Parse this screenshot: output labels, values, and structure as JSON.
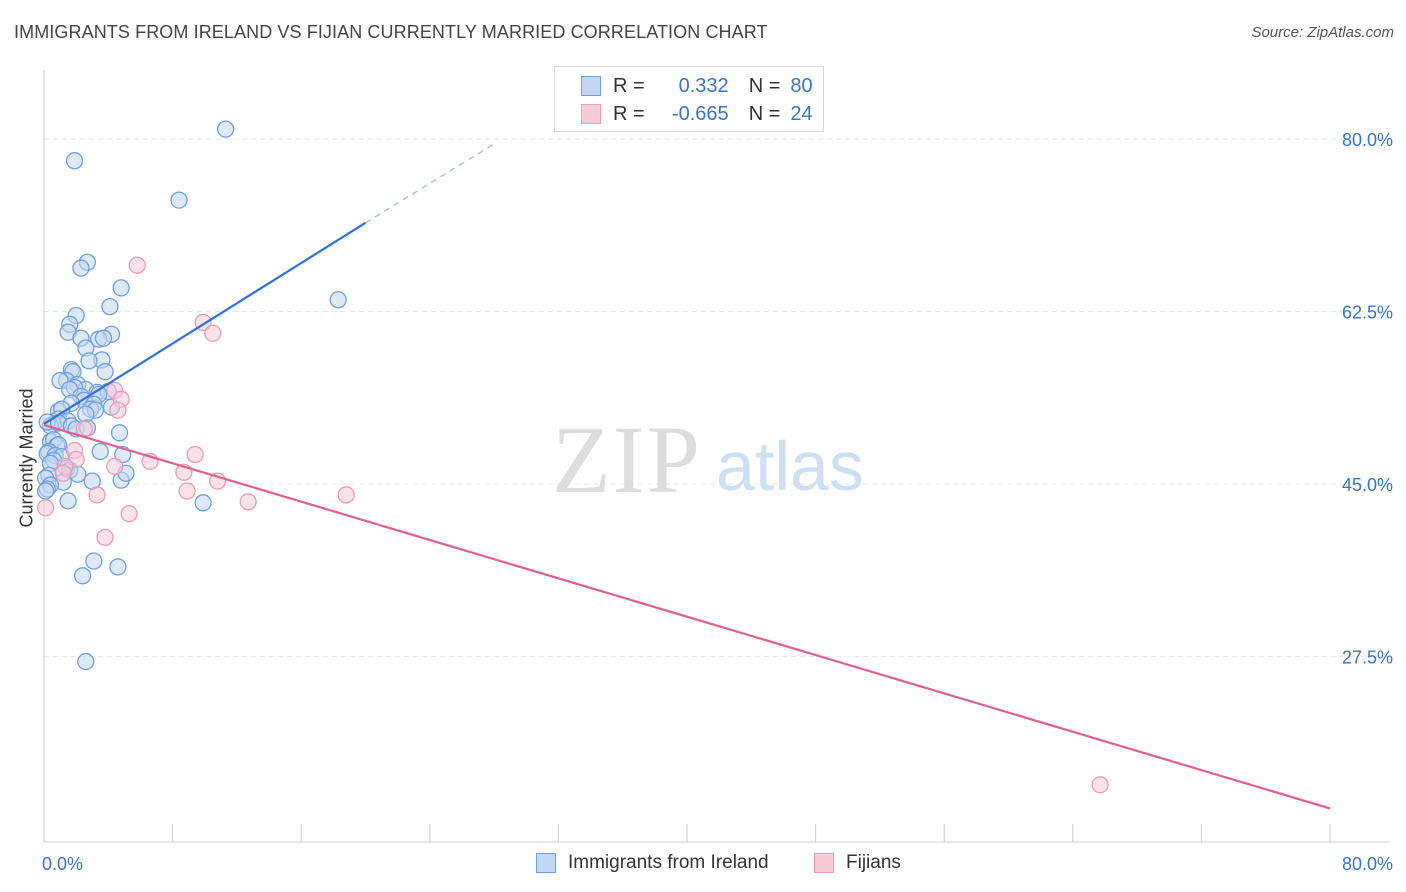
{
  "title": "IMMIGRANTS FROM IRELAND VS FIJIAN CURRENTLY MARRIED CORRELATION CHART",
  "source": "Source: ZipAtlas.com",
  "colors": {
    "blue": "#6e9fe0",
    "blue_fill": "#c2d7f3",
    "blue_line": "#2f72d2",
    "pink": "#ee9ab5",
    "pink_fill": "#f8cbd8",
    "pink_line": "#e0608f",
    "tick_label": "#3a73c6"
  },
  "legend_top": {
    "rows": [
      {
        "r_label": "R =",
        "r_value": "0.332",
        "n_label": "N =",
        "n_value": "80"
      },
      {
        "r_label": "R =",
        "r_value": "-0.665",
        "n_label": "N =",
        "n_value": "24"
      }
    ]
  },
  "chart_data": {
    "type": "scatter",
    "title": "IMMIGRANTS FROM IRELAND VS FIJIAN CURRENTLY MARRIED CORRELATION CHART",
    "xlabel": "",
    "ylabel": "Currently Married",
    "xlim": [
      0,
      80
    ],
    "ylim": [
      8.7,
      87
    ],
    "x_tick_labels": [
      "0.0%",
      "80.0%"
    ],
    "y_ticks": [
      27.5,
      45.0,
      62.5,
      80.0
    ],
    "y_tick_labels": [
      "27.5%",
      "45.0%",
      "62.5%",
      "80.0%"
    ],
    "watermark": {
      "zip": "ZIP",
      "atlas": "atlas"
    },
    "series": [
      {
        "name": "Immigrants from Ireland",
        "color": "#6e9fe0",
        "r": 0.332,
        "n": 80,
        "trend": {
          "x": [
            0,
            20
          ],
          "y": [
            51.1,
            71.5
          ],
          "dash_to": [
            28,
            79.5
          ]
        },
        "points": [
          [
            11.3,
            81.0
          ],
          [
            1.9,
            77.8
          ],
          [
            8.4,
            73.8
          ],
          [
            18.3,
            63.7
          ],
          [
            2.7,
            67.5
          ],
          [
            2.3,
            66.9
          ],
          [
            4.8,
            64.9
          ],
          [
            4.1,
            63.0
          ],
          [
            2.0,
            62.1
          ],
          [
            1.6,
            61.2
          ],
          [
            1.5,
            60.4
          ],
          [
            4.2,
            60.2
          ],
          [
            2.3,
            59.8
          ],
          [
            3.4,
            59.7
          ],
          [
            3.7,
            59.8
          ],
          [
            2.6,
            58.8
          ],
          [
            3.6,
            57.6
          ],
          [
            2.8,
            57.5
          ],
          [
            1.7,
            56.6
          ],
          [
            1.8,
            56.4
          ],
          [
            3.8,
            56.4
          ],
          [
            1.4,
            55.5
          ],
          [
            1.0,
            55.5
          ],
          [
            2.1,
            55.1
          ],
          [
            2.6,
            54.6
          ],
          [
            3.3,
            54.3
          ],
          [
            1.9,
            54.8
          ],
          [
            1.6,
            54.6
          ],
          [
            4.0,
            54.4
          ],
          [
            3.4,
            54.1
          ],
          [
            2.3,
            53.9
          ],
          [
            2.5,
            53.5
          ],
          [
            1.7,
            53.2
          ],
          [
            3.1,
            53.1
          ],
          [
            4.2,
            52.8
          ],
          [
            2.9,
            52.6
          ],
          [
            3.2,
            52.5
          ],
          [
            0.9,
            52.4
          ],
          [
            1.1,
            52.6
          ],
          [
            2.6,
            52.1
          ],
          [
            0.9,
            51.6
          ],
          [
            0.6,
            51.1
          ],
          [
            1.5,
            51.4
          ],
          [
            0.4,
            50.9
          ],
          [
            0.2,
            51.3
          ],
          [
            0.9,
            51.2
          ],
          [
            1.7,
            50.9
          ],
          [
            2.0,
            50.6
          ],
          [
            2.7,
            50.7
          ],
          [
            4.7,
            50.2
          ],
          [
            0.4,
            49.3
          ],
          [
            0.6,
            49.5
          ],
          [
            0.8,
            48.9
          ],
          [
            0.9,
            49.0
          ],
          [
            0.3,
            48.3
          ],
          [
            0.2,
            48.1
          ],
          [
            0.7,
            47.9
          ],
          [
            1.1,
            47.8
          ],
          [
            3.5,
            48.3
          ],
          [
            4.9,
            48.0
          ],
          [
            0.6,
            47.4
          ],
          [
            0.4,
            47.1
          ],
          [
            1.4,
            46.6
          ],
          [
            1.6,
            46.4
          ],
          [
            2.1,
            46.0
          ],
          [
            0.3,
            45.9
          ],
          [
            0.1,
            45.6
          ],
          [
            1.2,
            45.2
          ],
          [
            3.0,
            45.3
          ],
          [
            4.8,
            45.4
          ],
          [
            5.1,
            46.1
          ],
          [
            0.4,
            44.9
          ],
          [
            0.2,
            44.5
          ],
          [
            1.5,
            43.3
          ],
          [
            9.9,
            43.1
          ],
          [
            3.1,
            37.2
          ],
          [
            4.6,
            36.6
          ],
          [
            2.4,
            35.7
          ],
          [
            2.6,
            27.0
          ],
          [
            0.1,
            44.3
          ]
        ]
      },
      {
        "name": "Fijians",
        "color": "#ee9ab5",
        "r": -0.665,
        "n": 24,
        "trend": {
          "x": [
            0,
            80
          ],
          "y": [
            51.0,
            12.1
          ]
        },
        "points": [
          [
            5.8,
            67.2
          ],
          [
            9.9,
            61.4
          ],
          [
            10.5,
            60.3
          ],
          [
            4.4,
            54.5
          ],
          [
            4.8,
            53.6
          ],
          [
            4.6,
            52.5
          ],
          [
            2.5,
            50.6
          ],
          [
            1.9,
            48.4
          ],
          [
            2.0,
            47.5
          ],
          [
            9.4,
            48.0
          ],
          [
            6.6,
            47.3
          ],
          [
            4.4,
            46.8
          ],
          [
            1.3,
            46.8
          ],
          [
            1.2,
            46.1
          ],
          [
            8.7,
            46.2
          ],
          [
            10.8,
            45.3
          ],
          [
            8.9,
            44.3
          ],
          [
            18.8,
            43.9
          ],
          [
            3.3,
            43.9
          ],
          [
            12.7,
            43.2
          ],
          [
            5.3,
            42.0
          ],
          [
            0.1,
            42.6
          ],
          [
            3.8,
            39.6
          ],
          [
            65.7,
            14.5
          ]
        ]
      }
    ]
  },
  "bottom_legend": [
    {
      "label": "Immigrants from Ireland"
    },
    {
      "label": "Fijians"
    }
  ]
}
